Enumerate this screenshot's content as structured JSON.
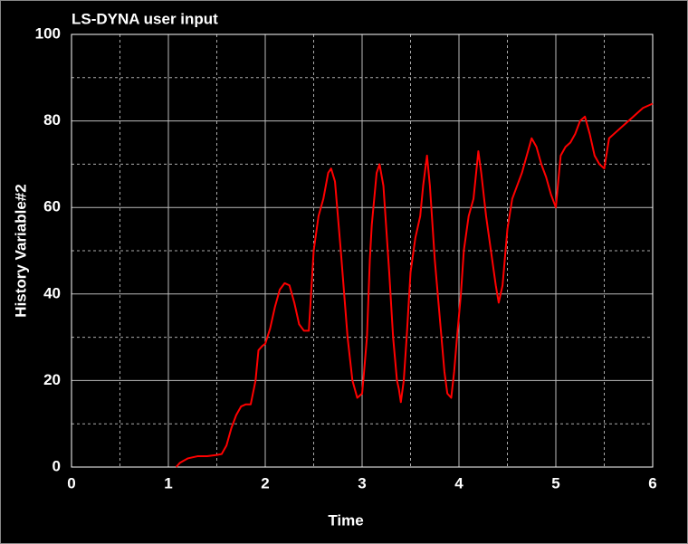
{
  "chart_data": {
    "type": "line",
    "title": "LS-DYNA user input",
    "x_label": "Time",
    "y_label": "History Variable#2",
    "color": "#ff0000",
    "grid": true,
    "xlim": [
      0,
      6
    ],
    "xticks": [
      0,
      1,
      2,
      3,
      4,
      5,
      6
    ],
    "ylim": [
      0,
      100
    ],
    "yticks": [
      0,
      20,
      40,
      60,
      80,
      100
    ],
    "x": [
      1.08,
      1.12,
      1.2,
      1.3,
      1.4,
      1.5,
      1.55,
      1.6,
      1.65,
      1.7,
      1.75,
      1.8,
      1.85,
      1.9,
      1.93,
      1.97,
      2.0,
      2.05,
      2.1,
      2.15,
      2.2,
      2.25,
      2.3,
      2.35,
      2.4,
      2.45,
      2.5,
      2.55,
      2.6,
      2.65,
      2.68,
      2.72,
      2.78,
      2.85,
      2.9,
      2.95,
      3.0,
      3.02,
      3.05,
      3.08,
      3.1,
      3.15,
      3.18,
      3.22,
      3.28,
      3.32,
      3.36,
      3.38,
      3.4,
      3.43,
      3.46,
      3.5,
      3.55,
      3.6,
      3.63,
      3.67,
      3.7,
      3.75,
      3.8,
      3.85,
      3.88,
      3.92,
      3.95,
      3.98,
      4.02,
      4.05,
      4.1,
      4.15,
      4.2,
      4.23,
      4.28,
      4.33,
      4.38,
      4.41,
      4.45,
      4.5,
      4.55,
      4.6,
      4.65,
      4.7,
      4.75,
      4.8,
      4.85,
      4.9,
      4.95,
      5.0,
      5.05,
      5.1,
      5.15,
      5.2,
      5.25,
      5.3,
      5.35,
      5.4,
      5.45,
      5.5,
      5.55,
      5.6,
      5.7,
      5.8,
      5.9,
      6.0
    ],
    "values": [
      0,
      1,
      2,
      2.5,
      2.5,
      2.8,
      3,
      5,
      9,
      12,
      14,
      14.5,
      14.5,
      20,
      27,
      28,
      28.5,
      32,
      37,
      41,
      42.5,
      42,
      38,
      33,
      31.5,
      31.5,
      50,
      58,
      62,
      68,
      69,
      66,
      50,
      30,
      20,
      16,
      17,
      22,
      30,
      48,
      56,
      68,
      70,
      65,
      45,
      30,
      20,
      18,
      15,
      20,
      30,
      45,
      53,
      58,
      65,
      72,
      65,
      48,
      35,
      22,
      17,
      16,
      22,
      30,
      40,
      50,
      58,
      62,
      73,
      68,
      58,
      50,
      42,
      38,
      42,
      55,
      62,
      65,
      68,
      72,
      76,
      74,
      70,
      67,
      63,
      60,
      72,
      74,
      75,
      77,
      80,
      81,
      77,
      72,
      70,
      69,
      76,
      77,
      79,
      81,
      83,
      84
    ]
  }
}
